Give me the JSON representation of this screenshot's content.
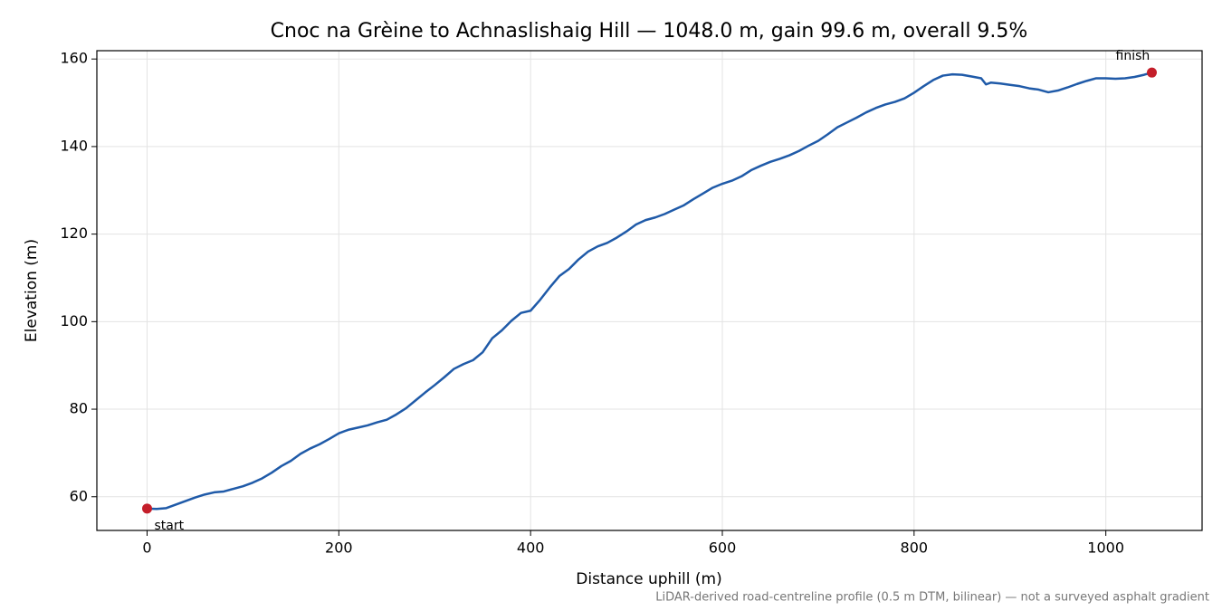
{
  "chart_data": {
    "type": "line",
    "title": "Cnoc na Grèine to Achnaslishaig Hill — 1048.0 m, gain 99.6 m, overall 9.5%",
    "xlabel": "Distance uphill (m)",
    "ylabel": "Elevation (m)",
    "footnote": "LiDAR-derived road-centreline profile (0.5 m DTM, bilinear) — not a surveyed asphalt gradient",
    "x": [
      0,
      10,
      20,
      30,
      40,
      50,
      60,
      70,
      80,
      90,
      100,
      110,
      120,
      130,
      140,
      150,
      160,
      170,
      180,
      190,
      200,
      210,
      220,
      230,
      240,
      250,
      260,
      270,
      280,
      290,
      300,
      310,
      320,
      330,
      340,
      350,
      360,
      370,
      380,
      390,
      400,
      410,
      420,
      430,
      440,
      450,
      460,
      470,
      480,
      490,
      500,
      510,
      520,
      530,
      540,
      550,
      560,
      570,
      580,
      590,
      600,
      610,
      620,
      630,
      640,
      650,
      660,
      670,
      680,
      690,
      700,
      710,
      720,
      730,
      740,
      750,
      760,
      770,
      780,
      790,
      800,
      810,
      820,
      830,
      840,
      850,
      860,
      870,
      875,
      880,
      890,
      900,
      910,
      920,
      930,
      940,
      950,
      960,
      970,
      980,
      990,
      1000,
      1010,
      1020,
      1030,
      1040,
      1048
    ],
    "series": [
      {
        "name": "Elevation",
        "color": "#1f5aa8",
        "values": [
          57.3,
          57.2,
          57.4,
          58.2,
          59.0,
          59.8,
          60.5,
          61.0,
          61.2,
          61.8,
          62.4,
          63.2,
          64.2,
          65.5,
          67.0,
          68.2,
          69.8,
          71.0,
          72.0,
          73.2,
          74.5,
          75.3,
          75.8,
          76.3,
          77.0,
          77.6,
          78.8,
          80.2,
          82.0,
          83.8,
          85.5,
          87.3,
          89.2,
          90.3,
          91.2,
          93.0,
          96.2,
          98.0,
          100.2,
          102.0,
          102.5,
          105.0,
          107.8,
          110.4,
          112.0,
          114.2,
          116.0,
          117.2,
          118.0,
          119.2,
          120.6,
          122.2,
          123.2,
          123.8,
          124.6,
          125.6,
          126.6,
          128.0,
          129.3,
          130.6,
          131.5,
          132.2,
          133.2,
          134.6,
          135.6,
          136.5,
          137.2,
          138.0,
          139.0,
          140.2,
          141.3,
          142.8,
          144.4,
          145.5,
          146.6,
          147.8,
          148.8,
          149.6,
          150.2,
          151.0,
          152.3,
          153.8,
          155.2,
          156.2,
          156.5,
          156.4,
          156.0,
          155.6,
          154.2,
          154.6,
          154.4,
          154.1,
          153.8,
          153.3,
          153.0,
          152.4,
          152.8,
          153.5,
          154.3,
          155.0,
          155.6,
          155.6,
          155.5,
          155.6,
          155.9,
          156.4,
          156.9
        ]
      }
    ],
    "markers": [
      {
        "label": "start",
        "x": 0,
        "y": 57.3,
        "color": "#c41e2a"
      },
      {
        "label": "finish",
        "x": 1048,
        "y": 156.9,
        "color": "#c41e2a"
      }
    ],
    "xlim": [
      -52.4,
      1100.4
    ],
    "ylim": [
      52.3,
      161.9
    ],
    "xticks": [
      0,
      200,
      400,
      600,
      800,
      1000
    ],
    "yticks": [
      60,
      80,
      100,
      120,
      140,
      160
    ],
    "grid": true
  }
}
